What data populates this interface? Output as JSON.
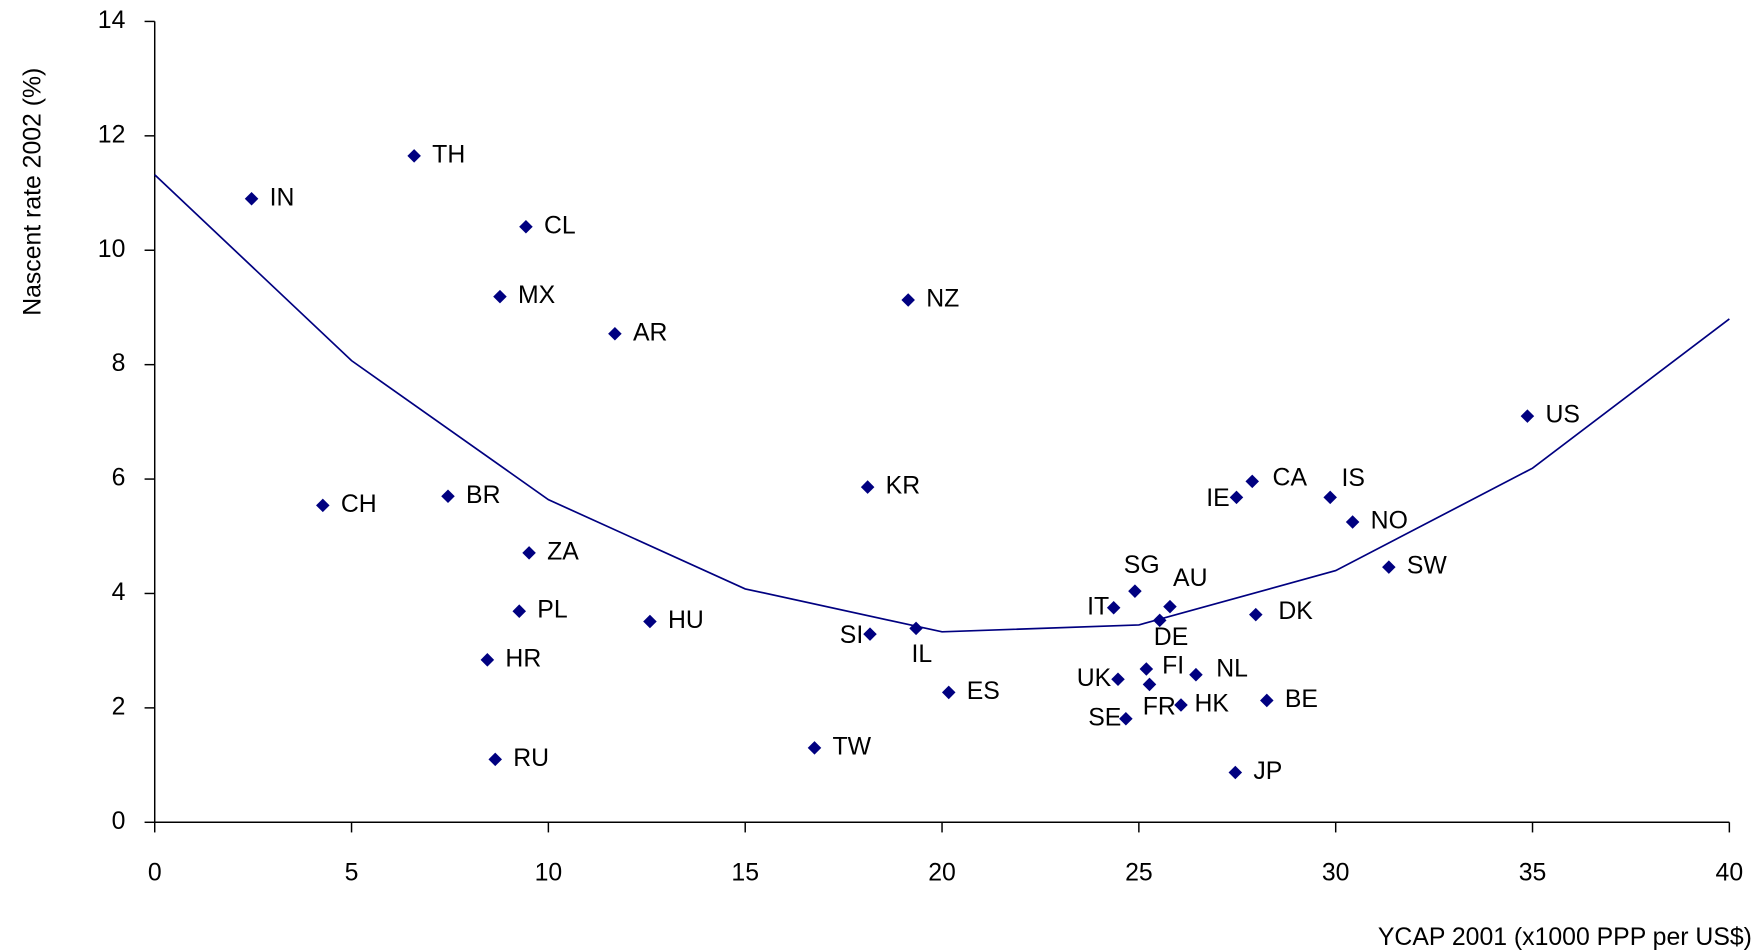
{
  "chart_data": {
    "type": "scatter",
    "x_label": "YCAP 2001 (x1000 PPP per US$)",
    "y_label": "Nascent rate 2002 (%)",
    "point_labels": [
      "IN",
      "TH",
      "CL",
      "MX",
      "AR",
      "NZ",
      "KR",
      "CH",
      "BR",
      "ZA",
      "PL",
      "HU",
      "HR",
      "RU",
      "TW",
      "SI",
      "IL",
      "ES",
      "US",
      "CA",
      "IE",
      "IS",
      "NO",
      "SW",
      "SG",
      "AU",
      "IT",
      "DE",
      "DK",
      "UK",
      "FI",
      "NL",
      "FR",
      "BE",
      "HK",
      "SE",
      "JP"
    ],
    "x": [
      2.46,
      6.59,
      9.43,
      8.77,
      11.69,
      19.14,
      18.11,
      4.27,
      7.45,
      9.51,
      9.26,
      12.58,
      8.45,
      8.65,
      16.76,
      18.17,
      19.34,
      20.17,
      34.87,
      27.88,
      27.48,
      29.86,
      30.43,
      31.35,
      24.9,
      25.79,
      24.36,
      25.53,
      27.97,
      24.47,
      25.19,
      26.45,
      25.27,
      28.25,
      26.07,
      24.67,
      27.45
    ],
    "values": [
      10.9,
      11.65,
      10.41,
      9.19,
      8.54,
      9.13,
      5.86,
      5.54,
      5.7,
      4.71,
      3.69,
      3.51,
      2.84,
      1.1,
      1.3,
      3.29,
      3.39,
      2.27,
      7.1,
      5.96,
      5.68,
      5.68,
      5.25,
      4.46,
      4.04,
      3.77,
      3.75,
      3.53,
      3.63,
      2.5,
      2.68,
      2.58,
      2.41,
      2.13,
      2.05,
      1.81,
      0.87
    ],
    "color": "#000080",
    "fit": {
      "x": [
        0,
        5,
        10,
        15,
        20,
        25,
        30,
        35,
        40
      ],
      "values": [
        11.32,
        8.07,
        5.64,
        4.08,
        3.33,
        3.45,
        4.4,
        6.19,
        8.8
      ],
      "color": "#000080"
    },
    "xlim": [
      0,
      40
    ],
    "xticks": [
      0,
      5,
      10,
      15,
      20,
      25,
      30,
      35,
      40
    ],
    "ylim": [
      0,
      14
    ],
    "yticks": [
      0,
      2,
      4,
      6,
      8,
      10,
      12,
      14
    ],
    "grid": false
  }
}
